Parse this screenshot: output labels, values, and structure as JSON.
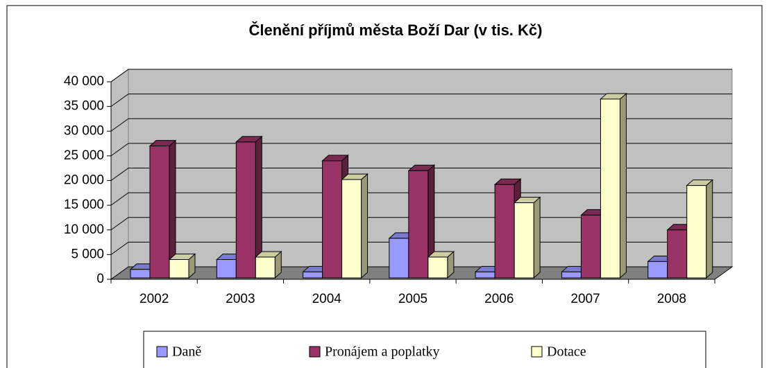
{
  "chart_data": {
    "type": "bar",
    "title": "Členění příjmů města Boží Dar (v tis. Kč)",
    "categories": [
      "2002",
      "2003",
      "2004",
      "2005",
      "2006",
      "2007",
      "2008"
    ],
    "series": [
      {
        "name": "Daně",
        "color": "#9999ff",
        "values": [
          2000,
          4000,
          1500,
          8300,
          1500,
          1500,
          3600
        ]
      },
      {
        "name": "Pronájem a poplatky",
        "color": "#993366",
        "values": [
          27000,
          27800,
          24000,
          22000,
          19200,
          13000,
          10000
        ]
      },
      {
        "name": "Dotace",
        "color": "#ffffcc",
        "values": [
          4000,
          4500,
          20200,
          4500,
          15500,
          36500,
          19000
        ]
      }
    ],
    "ylim": [
      0,
      40000
    ],
    "yticks": [
      0,
      {
        "value": 5000,
        "label": "5 000"
      },
      {
        "value": 10000,
        "label": "10 000"
      },
      {
        "value": 15000,
        "label": "15 000"
      },
      {
        "value": 20000,
        "label": "20 000"
      },
      {
        "value": 25000,
        "label": "25 000"
      },
      {
        "value": 30000,
        "label": "30 000"
      },
      {
        "value": 35000,
        "label": "35 000"
      },
      {
        "value": 40000,
        "label": "40 000"
      }
    ],
    "grid": true,
    "legend": "bottom"
  }
}
